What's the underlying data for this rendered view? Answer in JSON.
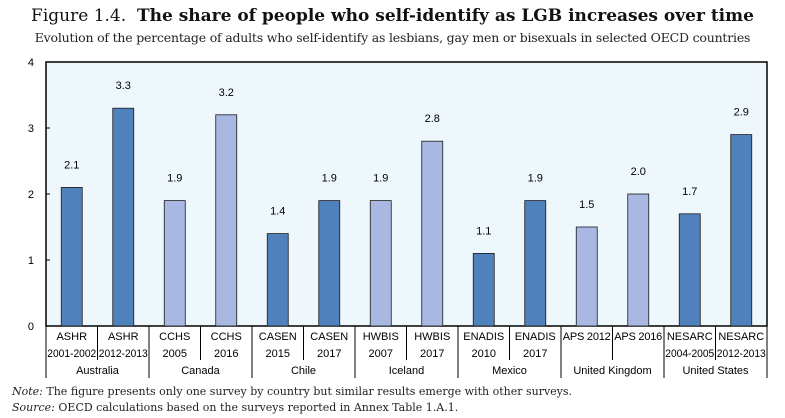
{
  "header": {
    "figure_label": "Figure 1.4.",
    "title": "The share of people who self-identify as LGB increases over time",
    "subtitle": "Evolution of the percentage of adults who self-identify as lesbians, gay men or bisexuals in selected OECD countries"
  },
  "chart_data": {
    "type": "bar",
    "title": "The share of people who self-identify as LGB increases over time",
    "ylim": [
      0,
      4
    ],
    "yticks": [
      0,
      1,
      2,
      3,
      4
    ],
    "grid": false,
    "background": "#eef8fc",
    "colors": {
      "dark": "#4f81bd",
      "light": "#a8b8e2"
    },
    "categories": [
      [
        "ASHR",
        "2001-2002"
      ],
      [
        "ASHR",
        "2012-2013"
      ],
      [
        "CCHS",
        "2005"
      ],
      [
        "CCHS",
        "2016"
      ],
      [
        "CASEN",
        "2015"
      ],
      [
        "CASEN",
        "2017"
      ],
      [
        "HWBIS",
        "2007"
      ],
      [
        "HWBIS",
        "2017"
      ],
      [
        "ENADIS",
        "2010"
      ],
      [
        "ENADIS",
        "2017"
      ],
      [
        "APS 2012",
        ""
      ],
      [
        "APS 2016",
        ""
      ],
      [
        "NESARC",
        "2004-2005"
      ],
      [
        "NESARC",
        "2012-2013"
      ]
    ],
    "values": [
      2.1,
      3.3,
      1.9,
      3.2,
      1.4,
      1.9,
      1.9,
      2.8,
      1.1,
      1.9,
      1.5,
      2.0,
      1.7,
      2.9
    ],
    "data_labels": [
      "2.1",
      "3.3",
      "1.9",
      "3.2",
      "1.4",
      "1.9",
      "1.9",
      "2.8",
      "1.1",
      "1.9",
      "1.5",
      "2.0",
      "1.7",
      "2.9"
    ],
    "groups": [
      {
        "name": "Australia",
        "color": "dark"
      },
      {
        "name": "Canada",
        "color": "light"
      },
      {
        "name": "Chile",
        "color": "dark"
      },
      {
        "name": "Iceland",
        "color": "light"
      },
      {
        "name": "Mexico",
        "color": "dark"
      },
      {
        "name": "United Kingdom",
        "color": "light"
      },
      {
        "name": "United States",
        "color": "dark"
      }
    ]
  },
  "notes": {
    "note_label": "Note:",
    "note_text": "The figure presents only one survey by country but similar results emerge with other surveys.",
    "source_label": "Source:",
    "source_text": "OECD calculations based on the surveys reported in Annex Table 1.A.1."
  }
}
